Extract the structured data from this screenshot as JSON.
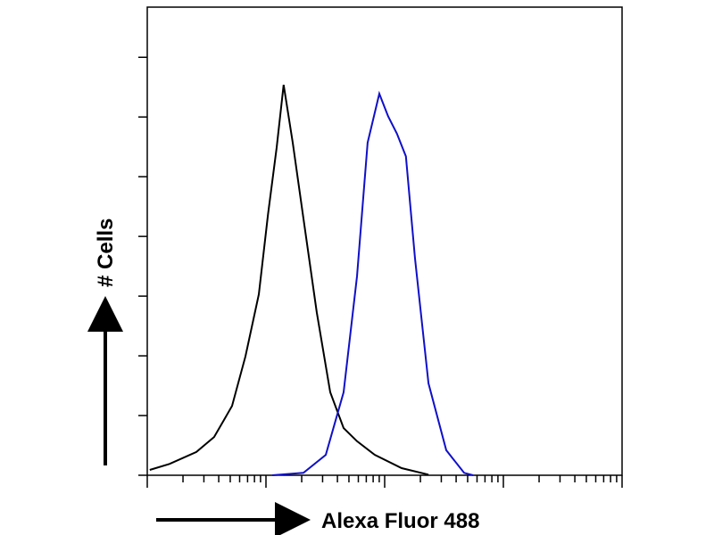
{
  "chart_data": {
    "type": "line",
    "xlabel": "Alexa Fluor 488",
    "ylabel": "# Cells",
    "xscale": "log",
    "xlim": [
      1,
      10000
    ],
    "ylim": [
      0,
      7.84
    ],
    "xticks": [
      1,
      2,
      3,
      4,
      5,
      6,
      7,
      8,
      9,
      10,
      20,
      30,
      40,
      50,
      60,
      70,
      80,
      90,
      100,
      200,
      300,
      400,
      500,
      600,
      700,
      800,
      900,
      1000,
      2000,
      3000,
      4000,
      5000,
      6000,
      7000,
      8000,
      9000,
      10000
    ],
    "yticks": [
      0,
      1,
      2,
      3,
      4,
      5,
      6,
      7
    ],
    "series": [
      {
        "color": "#000000",
        "x": [
          1.05,
          1.54,
          2.59,
          3.66,
          5.18,
          6.71,
          8.71,
          10.4,
          12.3,
          14.1,
          16.8,
          20.7,
          26.8,
          34.8,
          45.1,
          58.5,
          82.6,
          139,
          234
        ],
        "values": [
          0.09,
          0.19,
          0.39,
          0.64,
          1.16,
          1.99,
          3.03,
          4.37,
          5.49,
          6.54,
          5.57,
          4.3,
          2.73,
          1.39,
          0.79,
          0.57,
          0.34,
          0.12,
          0.01
        ]
      },
      {
        "color": "#1010c8",
        "x": [
          11.3,
          20.7,
          31.9,
          45.1,
          58.5,
          71.9,
          90.2,
          107,
          127,
          151,
          180,
          234,
          330,
          467,
          555
        ],
        "values": [
          0,
          0.04,
          0.34,
          1.39,
          3.33,
          5.57,
          6.39,
          6.01,
          5.72,
          5.34,
          3.63,
          1.54,
          0.42,
          0.04,
          0
        ]
      }
    ]
  }
}
